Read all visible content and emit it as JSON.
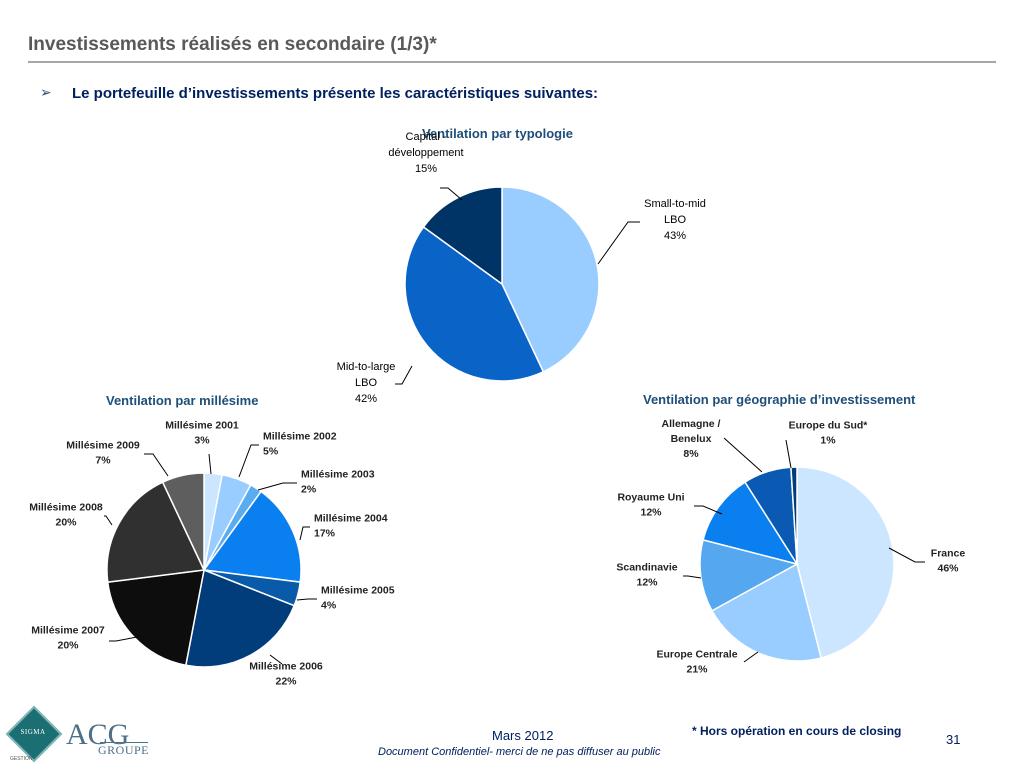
{
  "header": {
    "title": "Investissements réalisés en secondaire (1/3)*",
    "bullet_glyph": "➢",
    "lead": "Le portefeuille d’investissements présente les caractéristiques suivantes:"
  },
  "footer": {
    "date": "Mars 2012",
    "confidential": "Document Confidentiel- merci de ne pas diffuser au public",
    "footnote": "* Hors opération en cours de closing",
    "page_number": "31",
    "logo_sigma": "SIGMA",
    "logo_sigma_sub": "GESTION",
    "logo_acg": "ACG",
    "logo_groupe": "GROUPE"
  },
  "chart_data": [
    {
      "type": "pie",
      "title": "Ventilation par typologie",
      "slices": [
        {
          "label": [
            "Small-to-mid",
            "LBO",
            "43%"
          ],
          "value": 43,
          "color": "#99ccff"
        },
        {
          "label": [
            "Mid-to-large",
            "LBO",
            "42%"
          ],
          "value": 42,
          "color": "#0a64c8"
        },
        {
          "label": [
            "Capital -",
            "développement",
            "15%"
          ],
          "value": 15,
          "color": "#003366"
        }
      ]
    },
    {
      "type": "pie",
      "title": "Ventilation par millésime",
      "slices": [
        {
          "label": [
            "Millésime 2001",
            "3%"
          ],
          "value": 3,
          "color": "#cce6ff"
        },
        {
          "label": [
            "Millésime 2002",
            "5%"
          ],
          "value": 5,
          "color": "#99ccff"
        },
        {
          "label": [
            "Millésime 2003",
            "2%"
          ],
          "value": 2,
          "color": "#5aacf0"
        },
        {
          "label": [
            "Millésime 2004",
            "17%"
          ],
          "value": 17,
          "color": "#0a7ff0"
        },
        {
          "label": [
            "Millésime 2005",
            "4%"
          ],
          "value": 4,
          "color": "#0a5aaa"
        },
        {
          "label": [
            "Millésime 2006",
            "22%"
          ],
          "value": 22,
          "color": "#003d7a"
        },
        {
          "label": [
            "Millésime 2007",
            "20%"
          ],
          "value": 20,
          "color": "#0d0d0d"
        },
        {
          "label": [
            "Millésime 2008",
            "20%"
          ],
          "value": 20,
          "color": "#303030"
        },
        {
          "label": [
            "Millésime 2009",
            "7%"
          ],
          "value": 7,
          "color": "#5e5e5e"
        }
      ]
    },
    {
      "type": "pie",
      "title": "Ventilation par géographie d’investissement",
      "slices": [
        {
          "label": [
            "France",
            "46%"
          ],
          "value": 46,
          "color": "#cce6ff"
        },
        {
          "label": [
            "Europe Centrale",
            "21%"
          ],
          "value": 21,
          "color": "#99ccff"
        },
        {
          "label": [
            "Scandinavie",
            "12%"
          ],
          "value": 12,
          "color": "#55a8f0"
        },
        {
          "label": [
            "Royaume Uni",
            "12%"
          ],
          "value": 12,
          "color": "#0a7ff0"
        },
        {
          "label": [
            "Allemagne /",
            "Benelux",
            "8%"
          ],
          "value": 8,
          "color": "#0a5ab4"
        },
        {
          "label": [
            "Europe du Sud*",
            "1%"
          ],
          "value": 1,
          "color": "#003d7a"
        }
      ]
    }
  ]
}
